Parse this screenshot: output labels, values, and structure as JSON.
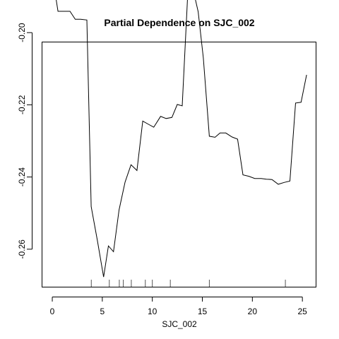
{
  "chart_data": {
    "type": "line",
    "title": "Partial Dependence on SJC_002",
    "xlabel": "SJC_002",
    "ylabel": "",
    "xlim": [
      -0.99,
      26.33
    ],
    "ylim": [
      -0.2704,
      -0.2027
    ],
    "xticks": [
      0,
      5,
      10,
      15,
      20,
      25
    ],
    "yticks": [
      -0.26,
      -0.24,
      -0.22,
      -0.2
    ],
    "ytick_labels": [
      "-0.26",
      "-0.24",
      "-0.22",
      "-0.20"
    ],
    "grid": false,
    "legend": "none",
    "series": [
      {
        "x": [
          0.0,
          0.57,
          1.18,
          1.77,
          2.29,
          2.83,
          3.46,
          3.89,
          4.51,
          5.13,
          5.61,
          6.12,
          6.68,
          7.28,
          7.87,
          8.46,
          9.04,
          9.68,
          10.14,
          10.83,
          11.38,
          11.96,
          12.49,
          12.99,
          13.58,
          14.05,
          14.58,
          15.1,
          15.7,
          16.27,
          16.77,
          17.34,
          17.96,
          18.52,
          19.06,
          19.65,
          20.24,
          20.88,
          21.41,
          21.96,
          22.59,
          23.18,
          23.75,
          24.32,
          24.87,
          25.42
        ],
        "y": [
          -0.1839,
          -0.1941,
          -0.1941,
          -0.1941,
          -0.1963,
          -0.1963,
          -0.1965,
          -0.2482,
          -0.2576,
          -0.2677,
          -0.2591,
          -0.2607,
          -0.2491,
          -0.2414,
          -0.2366,
          -0.2382,
          -0.2245,
          -0.2255,
          -0.2262,
          -0.2232,
          -0.2238,
          -0.2235,
          -0.2199,
          -0.2203,
          -0.187,
          -0.1877,
          -0.1942,
          -0.207,
          -0.2287,
          -0.229,
          -0.2278,
          -0.2278,
          -0.2289,
          -0.2295,
          -0.2394,
          -0.2398,
          -0.2404,
          -0.2404,
          -0.2406,
          -0.2407,
          -0.242,
          -0.2415,
          -0.2411,
          -0.2195,
          -0.2193,
          -0.2117
        ]
      }
    ],
    "rug_x": [
      3.9,
      5.7,
      6.7,
      7.1,
      7.9,
      9.3,
      10.0,
      11.8,
      15.7,
      23.3
    ]
  }
}
